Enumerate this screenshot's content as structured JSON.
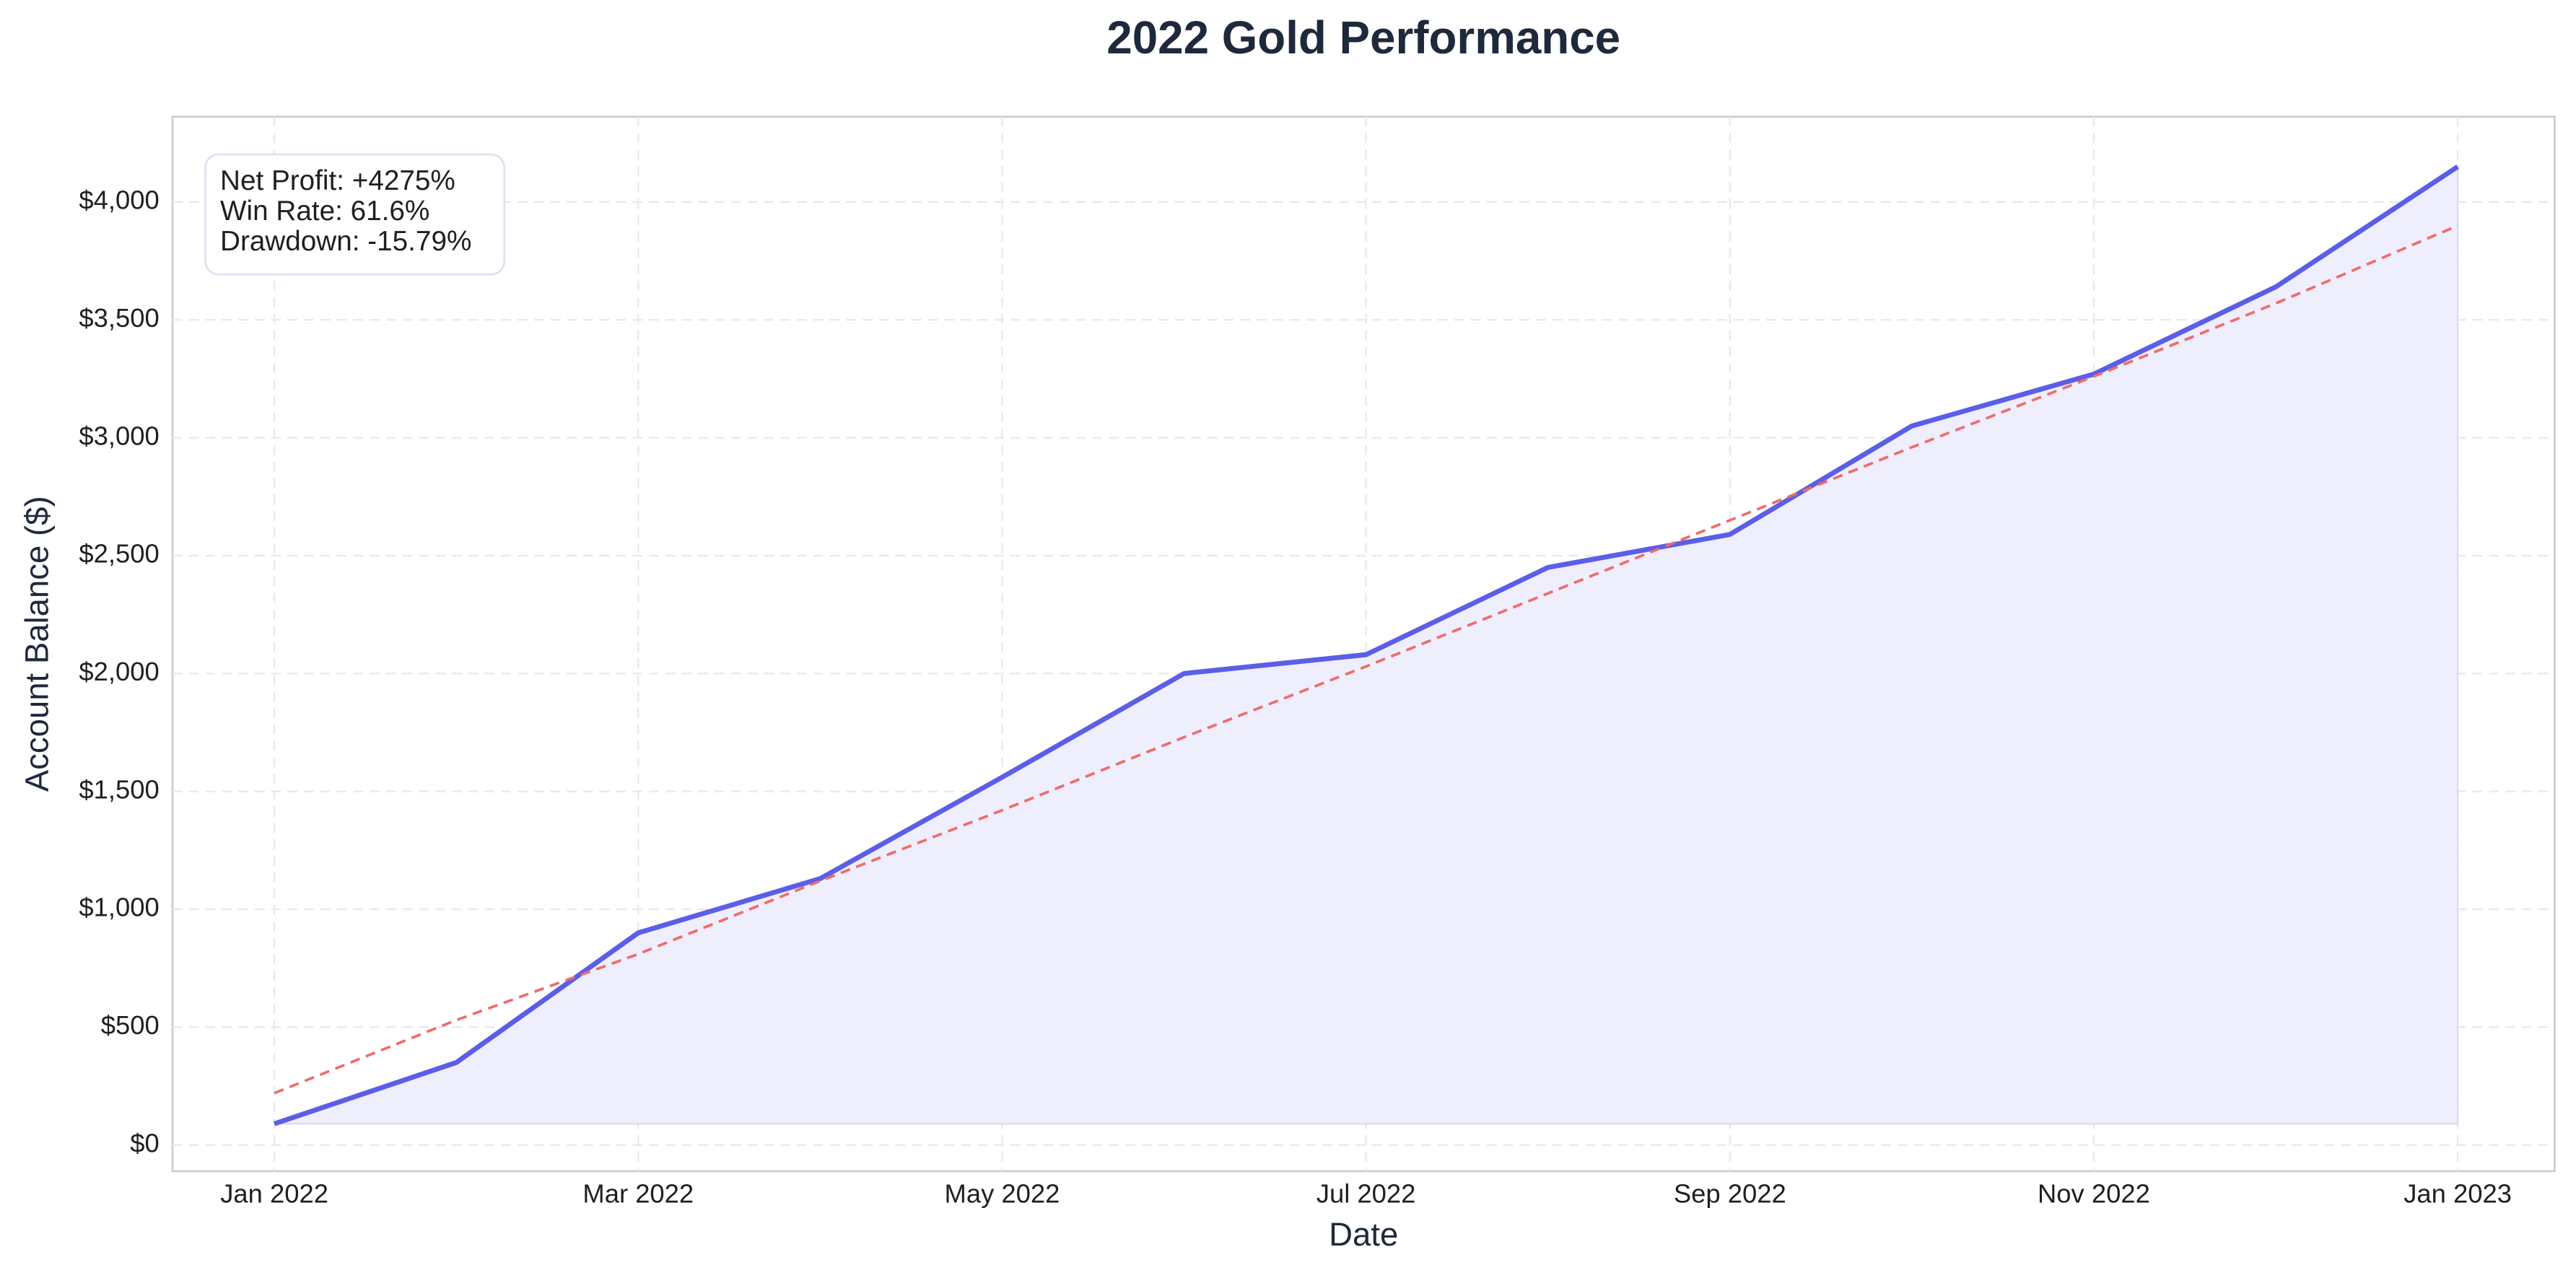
{
  "chart_data": {
    "type": "line",
    "title": "2022 Gold Performance",
    "xlabel": "Date",
    "ylabel": "Account Balance ($)",
    "annotation": [
      "Net Profit: +4275%",
      "Win Rate: 61.6%",
      "Drawdown: -15.79%"
    ],
    "x": [
      "2022-01",
      "2022-02",
      "2022-03",
      "2022-04",
      "2022-05",
      "2022-06",
      "2022-07",
      "2022-08",
      "2022-09",
      "2022-10",
      "2022-11",
      "2022-12",
      "2023-01"
    ],
    "series": [
      {
        "color": "#5b5ee6",
        "values": [
          90,
          350,
          900,
          1130,
          1560,
          2000,
          2080,
          2450,
          2590,
          3050,
          3270,
          3640,
          4150
        ],
        "fill": "#eeeefc"
      },
      {
        "color": "#ef6b6b",
        "dashed": true,
        "values": [
          220,
          530,
          810,
          1120,
          1420,
          1730,
          2030,
          2340,
          2650,
          2960,
          3260,
          3570,
          3900
        ]
      }
    ],
    "xticks": [
      {
        "value": "2022-01",
        "label": "Jan 2022"
      },
      {
        "value": "2022-03",
        "label": "Mar 2022"
      },
      {
        "value": "2022-05",
        "label": "May 2022"
      },
      {
        "value": "2022-07",
        "label": "Jul 2022"
      },
      {
        "value": "2022-09",
        "label": "Sep 2022"
      },
      {
        "value": "2022-11",
        "label": "Nov 2022"
      },
      {
        "value": "2023-01",
        "label": "Jan 2023"
      }
    ],
    "ylim": [
      -111,
      4362
    ],
    "yticks": [
      {
        "value": 0,
        "label": "$0"
      },
      {
        "value": 500,
        "label": "$500"
      },
      {
        "value": 1000,
        "label": "$1,000"
      },
      {
        "value": 1500,
        "label": "$1,500"
      },
      {
        "value": 2000,
        "label": "$2,000"
      },
      {
        "value": 2500,
        "label": "$2,500"
      },
      {
        "value": 3000,
        "label": "$3,000"
      },
      {
        "value": 3500,
        "label": "$3,500"
      },
      {
        "value": 4000,
        "label": "$4,000"
      }
    ],
    "grid": true
  }
}
